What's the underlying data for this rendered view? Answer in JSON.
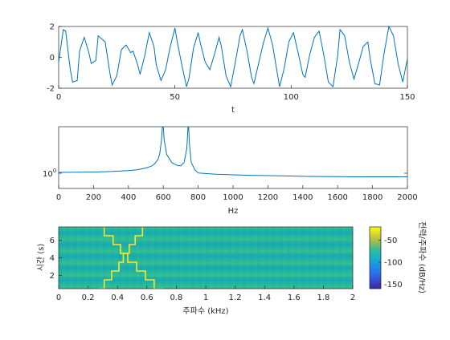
{
  "chart_data": [
    {
      "type": "line",
      "xlabel": "t",
      "xlim": [
        0,
        150
      ],
      "ylim": [
        -2,
        2
      ],
      "xticks": [
        "0",
        "50",
        "100",
        "150"
      ],
      "yticks": [
        "2",
        "0",
        "-2"
      ],
      "series": [
        {
          "x": [
            0,
            2,
            3,
            5,
            6,
            8,
            9,
            11,
            13,
            14,
            16,
            17,
            20,
            22,
            23,
            25,
            27,
            29,
            31,
            32,
            34,
            35,
            37,
            39,
            41,
            42,
            44,
            46,
            48,
            50,
            51,
            53,
            55,
            56,
            58,
            60,
            61,
            63,
            65,
            67,
            69,
            70,
            72,
            74,
            76,
            78,
            79,
            81,
            83,
            84,
            86,
            88,
            90,
            92,
            94,
            95,
            97,
            99,
            101,
            103,
            105,
            106,
            108,
            110,
            112,
            114,
            116,
            118,
            120,
            121,
            123,
            125,
            127,
            129,
            131,
            133,
            134,
            136,
            138,
            140,
            142,
            144,
            146,
            148,
            150
          ],
          "y": [
            -0.3,
            1.8,
            1.7,
            -0.8,
            -1.6,
            -1.5,
            0.4,
            1.3,
            0.3,
            -0.4,
            -0.2,
            1.4,
            1.0,
            -1.0,
            -1.8,
            -1.2,
            0.5,
            0.8,
            0.3,
            0.4,
            -0.5,
            -1.1,
            0.1,
            1.6,
            0.7,
            -0.5,
            -1.5,
            -0.8,
            0.7,
            1.9,
            1.0,
            -0.5,
            -1.9,
            -1.4,
            0.6,
            1.6,
            0.9,
            -0.3,
            -0.8,
            0.2,
            1.3,
            0.7,
            -1.2,
            -1.9,
            -0.3,
            1.4,
            1.8,
            0.4,
            -1.3,
            -1.7,
            -0.4,
            0.9,
            1.9,
            0.8,
            -1.0,
            -1.9,
            -0.7,
            1.0,
            1.6,
            0.3,
            -1.1,
            -1.3,
            0.2,
            1.3,
            1.7,
            0.2,
            -1.6,
            -1.9,
            0.1,
            1.8,
            1.4,
            -0.3,
            -1.4,
            -0.4,
            0.7,
            1.0,
            -0.1,
            -1.7,
            -1.8,
            0.3,
            2.0,
            1.4,
            -0.4,
            -1.6,
            -0.1
          ]
        }
      ]
    },
    {
      "type": "line",
      "xlabel": "Hz",
      "yscale": "log",
      "xlim": [
        0,
        2000
      ],
      "xticks": [
        "0",
        "200",
        "400",
        "600",
        "800",
        "1000",
        "1200",
        "1400",
        "1600",
        "1800",
        "2000"
      ],
      "ytick_label": "10",
      "ytick_exponent": "0",
      "series": [
        {
          "x": [
            0,
            100,
            200,
            300,
            400,
            450,
            500,
            530,
            550,
            570,
            580,
            590,
            595,
            600,
            605,
            620,
            650,
            680,
            700,
            720,
            735,
            742,
            745,
            750,
            760,
            780,
            800,
            900,
            1000,
            1100,
            1200,
            1300,
            1400,
            1500,
            1600,
            1700,
            1800,
            1900,
            2000
          ],
          "y": [
            1.06,
            1.07,
            1.09,
            1.13,
            1.2,
            1.28,
            1.45,
            1.65,
            1.95,
            2.7,
            4.2,
            11,
            30,
            30,
            11,
            3.8,
            2.1,
            1.75,
            1.7,
            2.2,
            6,
            30,
            30,
            8,
            2.2,
            1.3,
            1.02,
            0.93,
            0.89,
            0.86,
            0.84,
            0.82,
            0.8,
            0.79,
            0.78,
            0.77,
            0.77,
            0.77,
            0.77
          ]
        }
      ]
    },
    {
      "type": "heatmap",
      "xlabel": "주파수 (kHz)",
      "ylabel": "시간 (s)",
      "colorbar_label": "전력/주파수 (dB/Hz)",
      "xlim": [
        0,
        2
      ],
      "ylim": [
        0.5,
        7.5
      ],
      "xticks": [
        "0",
        "0.2",
        "0.4",
        "0.6",
        "0.8",
        "1",
        "1.2",
        "1.4",
        "1.6",
        "1.8",
        "2"
      ],
      "yticks": [
        "2",
        "4",
        "6"
      ],
      "colorbar_range": [
        -160,
        -20
      ],
      "colorbar_ticks": [
        "-50",
        "-100",
        "-150"
      ],
      "background_level": -100,
      "ridges": [
        {
          "name": "",
          "steps": [
            [
              7.5,
              0.31
            ],
            [
              6.5,
              0.37
            ],
            [
              5.5,
              0.42
            ],
            [
              4.5,
              0.47
            ],
            [
              3.5,
              0.53
            ],
            [
              2.5,
              0.59
            ],
            [
              1.5,
              0.65
            ],
            [
              0.5,
              0.71
            ]
          ]
        },
        {
          "name": "",
          "steps": [
            [
              7.5,
              0.57
            ],
            [
              6.5,
              0.52
            ],
            [
              5.5,
              0.48
            ],
            [
              4.5,
              0.44
            ],
            [
              3.5,
              0.41
            ],
            [
              2.5,
              0.36
            ],
            [
              1.5,
              0.31
            ],
            [
              0.5,
              0.27
            ]
          ]
        }
      ]
    }
  ]
}
